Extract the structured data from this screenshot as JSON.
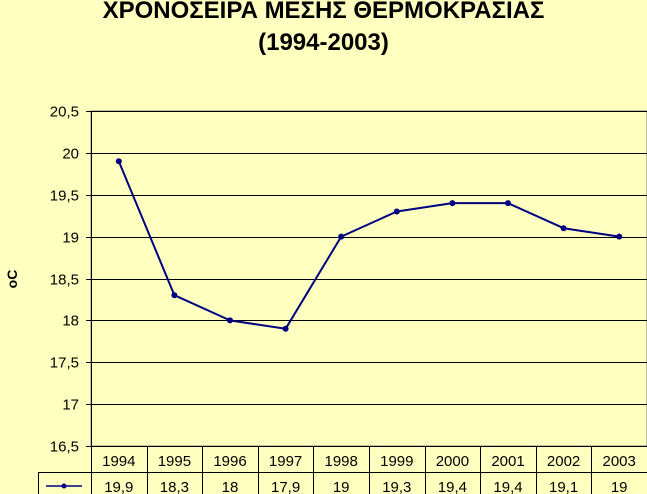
{
  "chart_data": {
    "type": "line",
    "title_line1": "ΧΡΟΝΟΣΕΙΡΑ ΜΕΣΗΣ ΘΕΡΜΟΚΡΑΣΙΑΣ",
    "title_line2": "(1994-2003)",
    "xlabel": "",
    "ylabel": "oC",
    "ylim": [
      16.5,
      20.5
    ],
    "yticks": [
      "16,5",
      "17",
      "17,5",
      "18",
      "18,5",
      "19",
      "19,5",
      "20",
      "20,5"
    ],
    "categories": [
      "1994",
      "1995",
      "1996",
      "1997",
      "1998",
      "1999",
      "2000",
      "2001",
      "2002",
      "2003"
    ],
    "series": [
      {
        "values": [
          19.9,
          18.3,
          18.0,
          17.9,
          19.0,
          19.3,
          19.4,
          19.4,
          19.1,
          19.0
        ],
        "value_labels": [
          "19,9",
          "18,3",
          "18",
          "17,9",
          "19",
          "19,3",
          "19,4",
          "19,4",
          "19,1",
          "19"
        ],
        "color": "#000080"
      }
    ],
    "grid": true,
    "data_table": true,
    "plot_background": "#ffffc0"
  }
}
